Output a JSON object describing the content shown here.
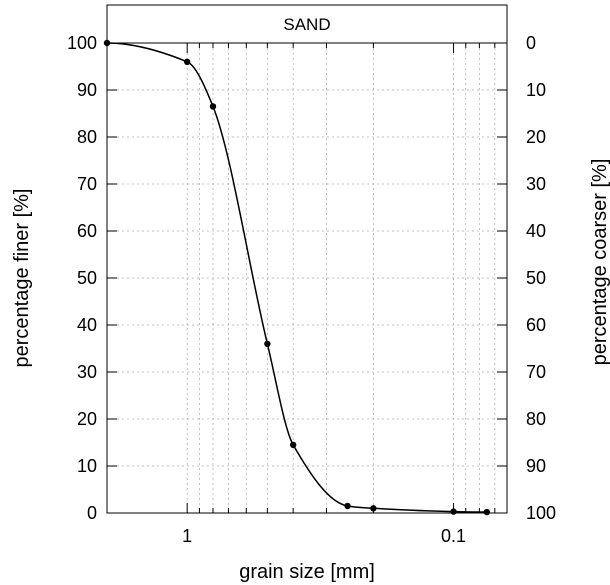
{
  "chart_data": {
    "type": "line",
    "band_label": "SAND",
    "xlabel": "grain size [mm]",
    "ylabel_left": "percentage finer [%]",
    "ylabel_right": "percentage coarser [%]",
    "x_scale": "log",
    "x_reversed": true,
    "xlim": [
      2.0,
      0.063
    ],
    "ylim": [
      0,
      100
    ],
    "x_ticks": [
      {
        "value": 1,
        "label": "1"
      },
      {
        "value": 0.1,
        "label": "0.1"
      }
    ],
    "y_ticks_left": [
      0,
      10,
      20,
      30,
      40,
      50,
      60,
      70,
      80,
      90,
      100
    ],
    "y_ticks_right": [
      100,
      90,
      80,
      70,
      60,
      50,
      40,
      30,
      20,
      10,
      0
    ],
    "grid": true,
    "series": [
      {
        "x": [
          2.0,
          1.0,
          0.8,
          0.5,
          0.4,
          0.25,
          0.2,
          0.1,
          0.075
        ],
        "y": [
          100,
          96,
          86.5,
          36,
          14.5,
          1.5,
          1.0,
          0.3,
          0.2
        ]
      }
    ]
  }
}
